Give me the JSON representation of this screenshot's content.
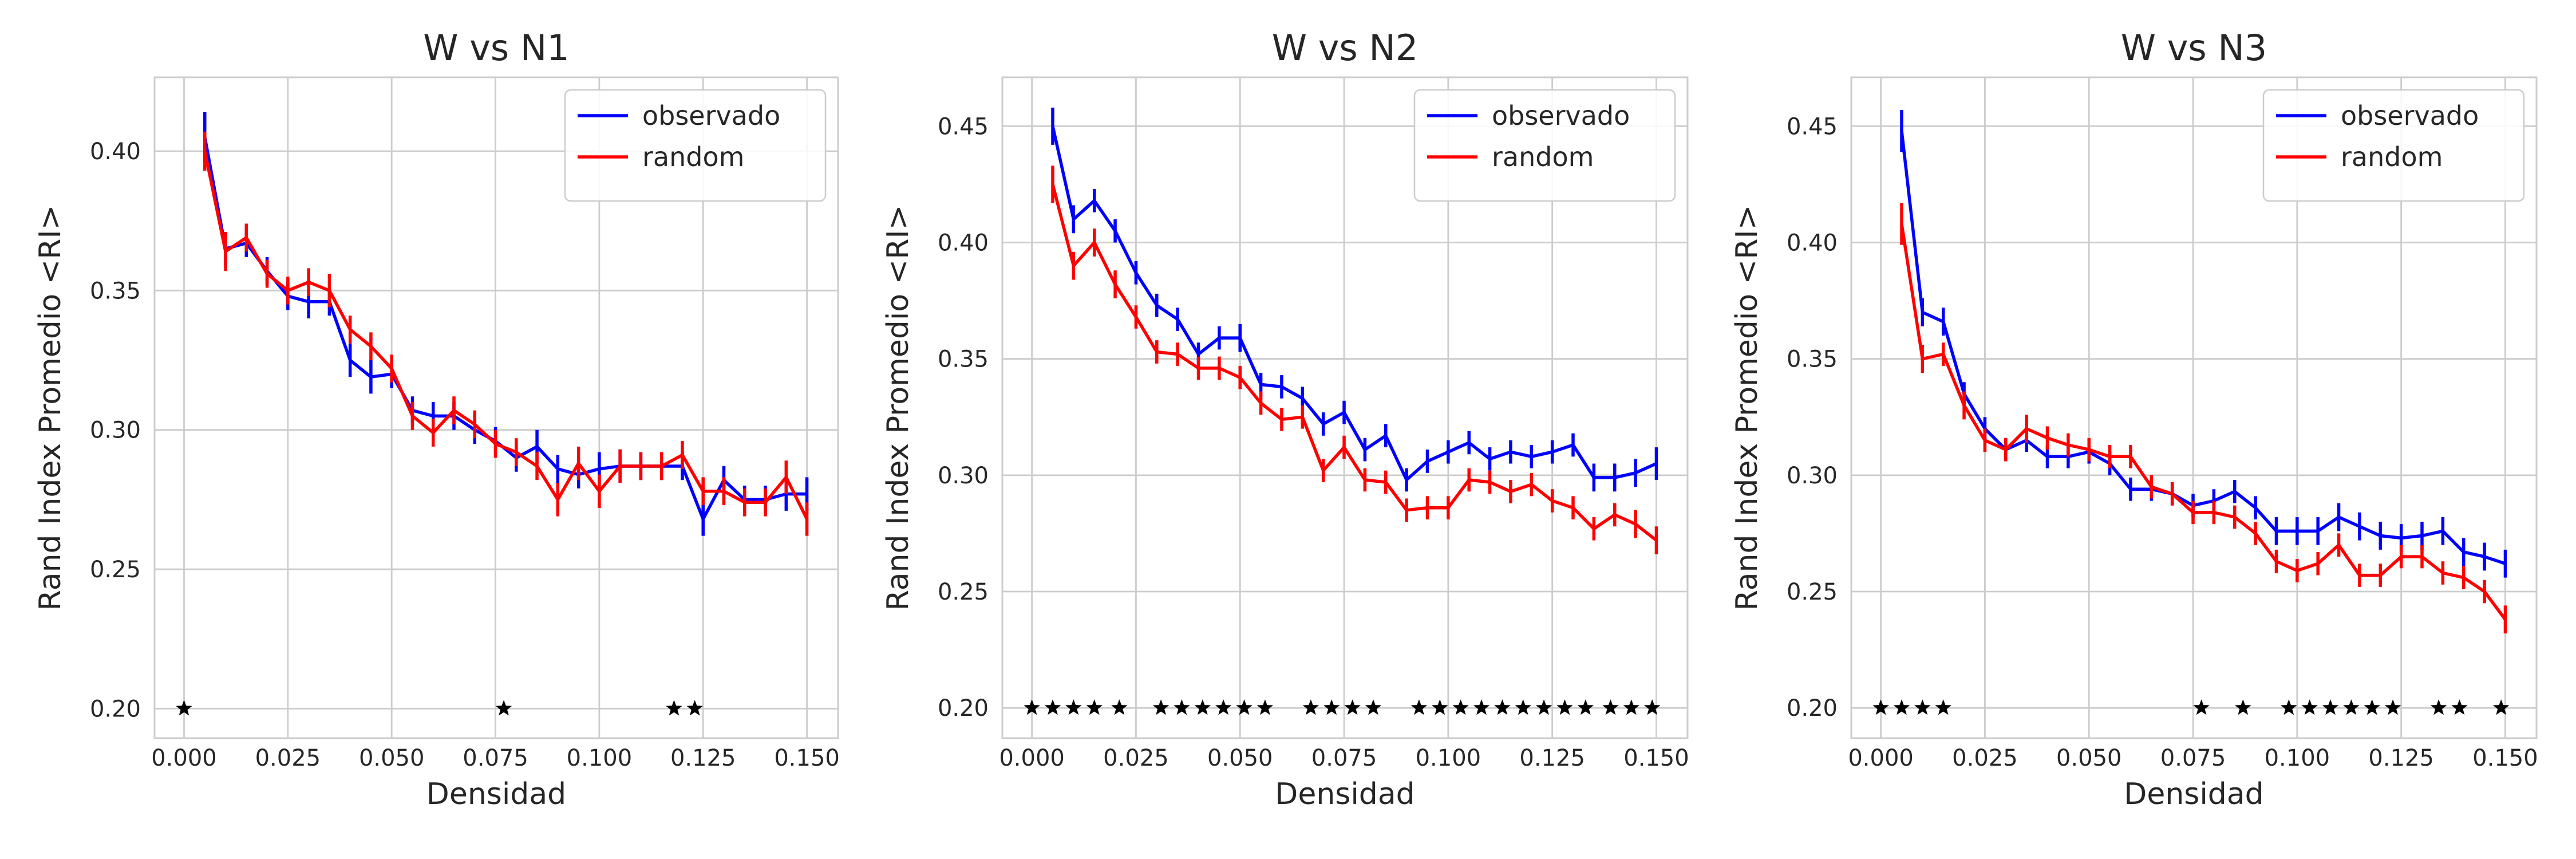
{
  "chart_data": [
    {
      "type": "line",
      "title": "W vs N1",
      "xlabel": "Densidad",
      "ylabel": "Rand Index Promedio <RI>",
      "xlim": [
        -0.0071,
        0.1575
      ],
      "ylim": [
        0.1894,
        0.4265
      ],
      "grid": true,
      "legend": "upper right",
      "xticks": [
        {
          "value": 0,
          "label": "0.000"
        },
        {
          "value": 0.025,
          "label": "0.025"
        },
        {
          "value": 0.05,
          "label": "0.050"
        },
        {
          "value": 0.075,
          "label": "0.075"
        },
        {
          "value": 0.1,
          "label": "0.100"
        },
        {
          "value": 0.125,
          "label": "0.125"
        },
        {
          "value": 0.15,
          "label": "0.150"
        }
      ],
      "yticks": [
        {
          "value": 0.2,
          "label": "0.20"
        },
        {
          "value": 0.25,
          "label": "0.25"
        },
        {
          "value": 0.3,
          "label": "0.30"
        },
        {
          "value": 0.35,
          "label": "0.35"
        },
        {
          "value": 0.4,
          "label": "0.40"
        }
      ],
      "x": [
        0.005,
        0.01,
        0.015,
        0.02,
        0.025,
        0.03,
        0.035,
        0.04,
        0.045,
        0.05,
        0.055,
        0.06,
        0.065,
        0.07,
        0.075,
        0.08,
        0.085,
        0.09,
        0.095,
        0.1,
        0.105,
        0.11,
        0.115,
        0.12,
        0.125,
        0.13,
        0.135,
        0.14,
        0.145,
        0.15
      ],
      "series": [
        {
          "name": "observado",
          "color": "#0000ff",
          "values": [
            0.405,
            0.365,
            0.367,
            0.357,
            0.348,
            0.346,
            0.346,
            0.325,
            0.319,
            0.32,
            0.307,
            0.305,
            0.305,
            0.3,
            0.296,
            0.29,
            0.294,
            0.286,
            0.284,
            0.286,
            0.287,
            0.287,
            0.287,
            0.287,
            0.268,
            0.282,
            0.275,
            0.275,
            0.277,
            0.277
          ],
          "errors": [
            0.009,
            0.006,
            0.005,
            0.005,
            0.005,
            0.006,
            0.005,
            0.006,
            0.006,
            0.005,
            0.005,
            0.005,
            0.005,
            0.005,
            0.005,
            0.005,
            0.006,
            0.005,
            0.005,
            0.006,
            0.006,
            0.005,
            0.005,
            0.005,
            0.006,
            0.005,
            0.005,
            0.005,
            0.006,
            0.006
          ]
        },
        {
          "name": "random",
          "color": "#ff0000",
          "values": [
            0.4,
            0.364,
            0.369,
            0.356,
            0.35,
            0.353,
            0.35,
            0.336,
            0.33,
            0.322,
            0.305,
            0.299,
            0.307,
            0.302,
            0.295,
            0.292,
            0.287,
            0.275,
            0.288,
            0.278,
            0.287,
            0.287,
            0.287,
            0.291,
            0.278,
            0.278,
            0.274,
            0.274,
            0.283,
            0.268
          ],
          "errors": [
            0.007,
            0.007,
            0.005,
            0.005,
            0.005,
            0.005,
            0.006,
            0.005,
            0.005,
            0.005,
            0.005,
            0.005,
            0.005,
            0.005,
            0.005,
            0.005,
            0.005,
            0.006,
            0.006,
            0.006,
            0.006,
            0.005,
            0.005,
            0.005,
            0.005,
            0.005,
            0.005,
            0.005,
            0.006,
            0.006
          ]
        }
      ],
      "star_x": [
        0.0,
        0.077,
        0.118,
        0.123
      ],
      "star_y": 0.2
    },
    {
      "type": "line",
      "title": "W vs N2",
      "xlabel": "Densidad",
      "ylabel": "Rand Index Promedio <RI>",
      "xlim": [
        -0.0071,
        0.1575
      ],
      "ylim": [
        0.187,
        0.471
      ],
      "grid": true,
      "legend": "upper right",
      "xticks": [
        {
          "value": 0,
          "label": "0.000"
        },
        {
          "value": 0.025,
          "label": "0.025"
        },
        {
          "value": 0.05,
          "label": "0.050"
        },
        {
          "value": 0.075,
          "label": "0.075"
        },
        {
          "value": 0.1,
          "label": "0.100"
        },
        {
          "value": 0.125,
          "label": "0.125"
        },
        {
          "value": 0.15,
          "label": "0.150"
        }
      ],
      "yticks": [
        {
          "value": 0.2,
          "label": "0.20"
        },
        {
          "value": 0.25,
          "label": "0.25"
        },
        {
          "value": 0.3,
          "label": "0.30"
        },
        {
          "value": 0.35,
          "label": "0.35"
        },
        {
          "value": 0.4,
          "label": "0.40"
        },
        {
          "value": 0.45,
          "label": "0.45"
        }
      ],
      "x": [
        0.005,
        0.01,
        0.015,
        0.02,
        0.025,
        0.03,
        0.035,
        0.04,
        0.045,
        0.05,
        0.055,
        0.06,
        0.065,
        0.07,
        0.075,
        0.08,
        0.085,
        0.09,
        0.095,
        0.1,
        0.105,
        0.11,
        0.115,
        0.12,
        0.125,
        0.13,
        0.135,
        0.14,
        0.145,
        0.15
      ],
      "series": [
        {
          "name": "observado",
          "color": "#0000ff",
          "values": [
            0.45,
            0.41,
            0.418,
            0.405,
            0.387,
            0.373,
            0.367,
            0.352,
            0.359,
            0.359,
            0.339,
            0.338,
            0.333,
            0.322,
            0.327,
            0.311,
            0.317,
            0.298,
            0.306,
            0.31,
            0.314,
            0.307,
            0.31,
            0.308,
            0.31,
            0.313,
            0.299,
            0.299,
            0.301,
            0.305
          ],
          "errors": [
            0.008,
            0.006,
            0.005,
            0.005,
            0.005,
            0.005,
            0.005,
            0.005,
            0.005,
            0.006,
            0.005,
            0.005,
            0.005,
            0.005,
            0.005,
            0.005,
            0.005,
            0.005,
            0.005,
            0.005,
            0.005,
            0.005,
            0.005,
            0.005,
            0.005,
            0.005,
            0.006,
            0.006,
            0.006,
            0.007
          ]
        },
        {
          "name": "random",
          "color": "#ff0000",
          "values": [
            0.425,
            0.39,
            0.4,
            0.382,
            0.368,
            0.353,
            0.352,
            0.346,
            0.346,
            0.342,
            0.331,
            0.324,
            0.325,
            0.302,
            0.312,
            0.298,
            0.297,
            0.285,
            0.286,
            0.286,
            0.298,
            0.297,
            0.293,
            0.296,
            0.289,
            0.286,
            0.277,
            0.283,
            0.279,
            0.272
          ],
          "errors": [
            0.008,
            0.006,
            0.006,
            0.006,
            0.005,
            0.005,
            0.005,
            0.005,
            0.005,
            0.005,
            0.005,
            0.005,
            0.005,
            0.005,
            0.005,
            0.005,
            0.005,
            0.005,
            0.005,
            0.005,
            0.005,
            0.005,
            0.005,
            0.005,
            0.005,
            0.005,
            0.005,
            0.005,
            0.006,
            0.006
          ]
        }
      ],
      "star_x": [
        0.0,
        0.005,
        0.01,
        0.015,
        0.021,
        0.031,
        0.036,
        0.041,
        0.046,
        0.051,
        0.056,
        0.067,
        0.072,
        0.077,
        0.082,
        0.093,
        0.098,
        0.103,
        0.108,
        0.113,
        0.118,
        0.123,
        0.128,
        0.133,
        0.139,
        0.144,
        0.149
      ],
      "star_y": 0.2
    },
    {
      "type": "line",
      "title": "W vs N3",
      "xlabel": "Densidad",
      "ylabel": "Rand Index Promedio <RI>",
      "xlim": [
        -0.0071,
        0.1575
      ],
      "ylim": [
        0.187,
        0.471
      ],
      "grid": true,
      "legend": "upper right",
      "xticks": [
        {
          "value": 0,
          "label": "0.000"
        },
        {
          "value": 0.025,
          "label": "0.025"
        },
        {
          "value": 0.05,
          "label": "0.050"
        },
        {
          "value": 0.075,
          "label": "0.075"
        },
        {
          "value": 0.1,
          "label": "0.100"
        },
        {
          "value": 0.125,
          "label": "0.125"
        },
        {
          "value": 0.15,
          "label": "0.150"
        }
      ],
      "yticks": [
        {
          "value": 0.2,
          "label": "0.20"
        },
        {
          "value": 0.25,
          "label": "0.25"
        },
        {
          "value": 0.3,
          "label": "0.30"
        },
        {
          "value": 0.35,
          "label": "0.35"
        },
        {
          "value": 0.4,
          "label": "0.40"
        },
        {
          "value": 0.45,
          "label": "0.45"
        }
      ],
      "x": [
        0.005,
        0.01,
        0.015,
        0.02,
        0.025,
        0.03,
        0.035,
        0.04,
        0.045,
        0.05,
        0.055,
        0.06,
        0.065,
        0.07,
        0.075,
        0.08,
        0.085,
        0.09,
        0.095,
        0.1,
        0.105,
        0.11,
        0.115,
        0.12,
        0.125,
        0.13,
        0.135,
        0.14,
        0.145,
        0.15
      ],
      "series": [
        {
          "name": "observado",
          "color": "#0000ff",
          "values": [
            0.448,
            0.37,
            0.366,
            0.335,
            0.32,
            0.311,
            0.315,
            0.308,
            0.308,
            0.31,
            0.305,
            0.294,
            0.294,
            0.292,
            0.287,
            0.289,
            0.293,
            0.286,
            0.276,
            0.276,
            0.276,
            0.282,
            0.278,
            0.274,
            0.273,
            0.274,
            0.276,
            0.267,
            0.265,
            0.262
          ],
          "errors": [
            0.009,
            0.006,
            0.006,
            0.005,
            0.005,
            0.005,
            0.005,
            0.005,
            0.005,
            0.005,
            0.005,
            0.005,
            0.005,
            0.005,
            0.005,
            0.005,
            0.005,
            0.005,
            0.006,
            0.006,
            0.006,
            0.006,
            0.006,
            0.006,
            0.006,
            0.006,
            0.006,
            0.006,
            0.006,
            0.006
          ]
        },
        {
          "name": "random",
          "color": "#ff0000",
          "values": [
            0.408,
            0.35,
            0.352,
            0.33,
            0.315,
            0.311,
            0.32,
            0.316,
            0.313,
            0.311,
            0.308,
            0.308,
            0.295,
            0.292,
            0.284,
            0.284,
            0.282,
            0.275,
            0.263,
            0.259,
            0.262,
            0.27,
            0.257,
            0.257,
            0.265,
            0.265,
            0.258,
            0.256,
            0.25,
            0.238
          ],
          "errors": [
            0.009,
            0.006,
            0.005,
            0.006,
            0.005,
            0.005,
            0.006,
            0.005,
            0.005,
            0.005,
            0.005,
            0.005,
            0.005,
            0.005,
            0.005,
            0.005,
            0.005,
            0.005,
            0.005,
            0.005,
            0.005,
            0.005,
            0.005,
            0.005,
            0.005,
            0.005,
            0.005,
            0.005,
            0.005,
            0.006
          ]
        }
      ],
      "star_x": [
        0.0,
        0.005,
        0.01,
        0.015,
        0.077,
        0.087,
        0.098,
        0.103,
        0.108,
        0.113,
        0.118,
        0.123,
        0.134,
        0.139,
        0.149
      ],
      "star_y": 0.2
    }
  ]
}
